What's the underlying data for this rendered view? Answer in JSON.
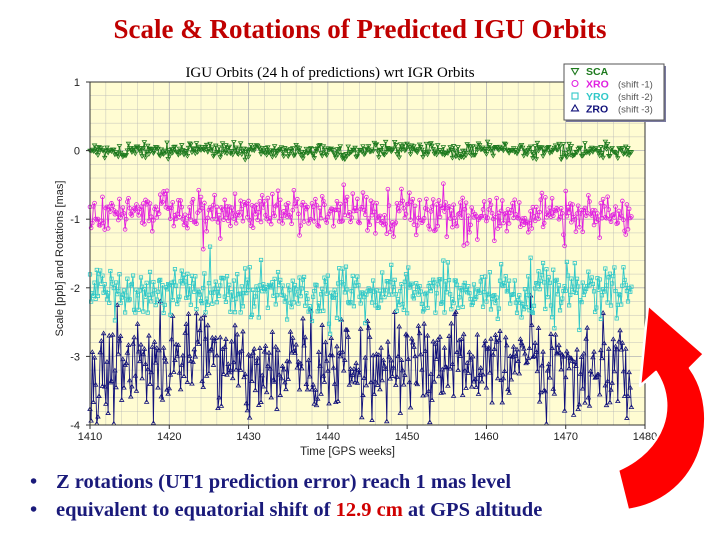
{
  "slide": {
    "title": "Scale & Rotations of Predicted IGU Orbits",
    "bullets": [
      {
        "text": "Z rotations (UT1 prediction error) reach 1 mas level"
      },
      {
        "before": "equivalent to equatorial shift of ",
        "highlight": "12.9 cm",
        "after": " at GPS altitude"
      }
    ]
  },
  "colors": {
    "title": "#c00000",
    "bullet_text": "#1a1a7a",
    "highlight": "#d00000",
    "plot_background": "#fffcd2",
    "grid": "#b4b4b4",
    "arrow": "#ff0000"
  },
  "chart_data": {
    "type": "line",
    "title": "IGU Orbits (24 h of predictions) wrt IGR Orbits",
    "xlabel": "Time [GPS weeks]",
    "ylabel": "Scale [ppb] and Rotations [mas]",
    "xlim": [
      1410,
      1480
    ],
    "ylim": [
      -4,
      1
    ],
    "xticks": [
      1410,
      1420,
      1430,
      1440,
      1450,
      1460,
      1470,
      1480
    ],
    "yticks": [
      1,
      0,
      -1,
      -2,
      -3,
      -4
    ],
    "grid": true,
    "legend_position": "top-right",
    "series": [
      {
        "name": "SCA",
        "shift_label": "",
        "color": "#1e7a1e",
        "marker": "triangle-down",
        "offset": 0,
        "mean": 0.0,
        "amplitude": 0.12
      },
      {
        "name": "XRO",
        "shift_label": "(shift -1)",
        "color": "#e020e0",
        "marker": "circle",
        "offset": -1,
        "mean": -0.92,
        "amplitude": 0.32
      },
      {
        "name": "YRO",
        "shift_label": "(shift -2)",
        "color": "#30c8c8",
        "marker": "square",
        "offset": -2,
        "mean": -2.05,
        "amplitude": 0.38
      },
      {
        "name": "ZRO",
        "shift_label": "(shift -3)",
        "color": "#10107a",
        "marker": "triangle-up",
        "offset": -3,
        "mean": -3.15,
        "amplitude": 0.75
      }
    ]
  }
}
